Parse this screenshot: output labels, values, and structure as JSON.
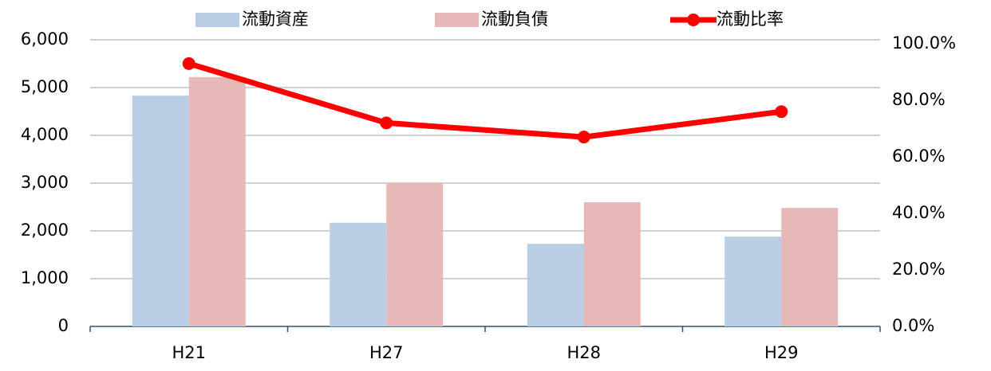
{
  "chart_data": {
    "type": "bar_line",
    "categories": [
      "H21",
      "H27",
      "H28",
      "H29"
    ],
    "series": [
      {
        "name": "流動資産",
        "color": "#b9cde4",
        "type": "bar",
        "values": [
          4830,
          2170,
          1730,
          1880
        ]
      },
      {
        "name": "流動負債",
        "color": "#e6b8b7",
        "type": "bar",
        "values": [
          5220,
          3000,
          2600,
          2480
        ]
      },
      {
        "name": "流動比率",
        "color": "#ff0000",
        "type": "line",
        "axis": "y2",
        "values": [
          93,
          72,
          67,
          76
        ]
      }
    ],
    "ylim": [
      0,
      6000
    ],
    "yticks": [
      0,
      {
        "value": 1000,
        "label": "1,000"
      },
      {
        "value": 2000,
        "label": "2,000"
      },
      {
        "value": 3000,
        "label": "3,000"
      },
      {
        "value": 4000,
        "label": "4,000"
      },
      {
        "value": 5000,
        "label": "5,000"
      },
      {
        "value": 6000,
        "label": "6,000"
      }
    ],
    "y2lim": [
      0,
      100
    ],
    "y2ticks": [
      {
        "value": 0,
        "label": "0.0%"
      },
      {
        "value": 20,
        "label": "20.0%"
      },
      {
        "value": 40,
        "label": "40.0%"
      },
      {
        "value": 60,
        "label": "60.0%"
      },
      {
        "value": 80,
        "label": "80.0%"
      },
      {
        "value": 100,
        "label": "100.0%"
      }
    ],
    "grid": true,
    "legend": "top"
  }
}
